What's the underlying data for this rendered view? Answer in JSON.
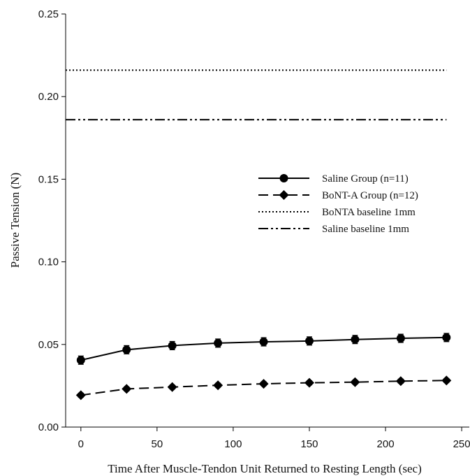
{
  "chart_data": {
    "type": "line",
    "xlabel": "Time After Muscle-Tendon Unit Returned to Resting Length (sec)",
    "ylabel": "Passive Tension (N)",
    "xlim": [
      -10,
      255
    ],
    "ylim": [
      0,
      0.25
    ],
    "xticks": [
      0,
      50,
      100,
      150,
      200,
      250
    ],
    "xtick_labels": [
      "0",
      "50",
      "100",
      "150",
      "200",
      "250"
    ],
    "yticks": [
      0,
      0.05,
      0.1,
      0.15,
      0.2,
      0.25
    ],
    "ytick_labels": [
      "0.00",
      "0.05",
      "0.10",
      "0.15",
      "0.20",
      "0.25"
    ],
    "grid": false,
    "legend_position": "center-right",
    "x": [
      0,
      30,
      60,
      90,
      120,
      150,
      180,
      210,
      240
    ],
    "series": [
      {
        "name": "Saline Group (n=11)",
        "values": [
          0.0405,
          0.0468,
          0.0493,
          0.0508,
          0.0516,
          0.0521,
          0.053,
          0.0537,
          0.0542
        ],
        "error": [
          0.0025,
          0.0025,
          0.0025,
          0.0025,
          0.0025,
          0.0025,
          0.0025,
          0.0025,
          0.0025
        ],
        "line_style": "solid",
        "marker": "circle"
      },
      {
        "name": "BoNT-A Group (n=12)",
        "values": [
          0.0193,
          0.0231,
          0.0242,
          0.0253,
          0.0262,
          0.0268,
          0.0272,
          0.0278,
          0.0282
        ],
        "error": [
          0.0012,
          0.0012,
          0.0012,
          0.0012,
          0.0012,
          0.0012,
          0.0012,
          0.0012,
          0.0012
        ],
        "line_style": "dashed",
        "marker": "diamond"
      },
      {
        "name": "BoNTA baseline 1mm",
        "constant": 0.216,
        "x_range": [
          -10,
          240
        ],
        "line_style": "dotted",
        "marker": "none"
      },
      {
        "name": "Saline baseline 1mm",
        "constant": 0.186,
        "x_range": [
          -10,
          240
        ],
        "line_style": "dash-dot-dot",
        "marker": "none"
      }
    ],
    "colors": {
      "line": "#000000",
      "background": "#ffffff"
    }
  }
}
